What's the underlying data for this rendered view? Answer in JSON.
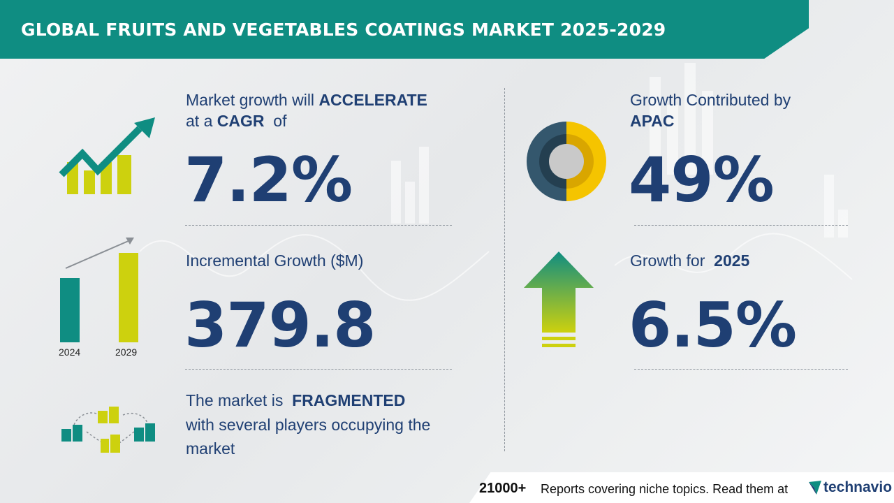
{
  "header": {
    "title": "GLOBAL FRUITS AND VEGETABLES COATINGS MARKET 2025-2029"
  },
  "cagr": {
    "line1_prefix": "Market growth will",
    "line1_emph": "ACCELERATE",
    "line2_prefix": "at a",
    "line2_emph": "CAGR",
    "line2_suffix": "of",
    "value": "7.2%"
  },
  "incremental": {
    "label": "Incremental Growth ($M)",
    "value": "379.8",
    "bars": [
      {
        "year": "2024"
      },
      {
        "year": "2029"
      }
    ]
  },
  "fragmented": {
    "line1_prefix": "The market is",
    "line1_emph": "FRAGMENTED",
    "line2": "with several players occupying the",
    "line3": "market"
  },
  "region": {
    "label_line1": "Growth Contributed by",
    "label_emph": "APAC",
    "value": "49%"
  },
  "yoy": {
    "label_prefix": "Growth for",
    "label_emph": "2025",
    "value": "6.5%"
  },
  "footer": {
    "count": "21000+",
    "text": "Reports covering niche topics. Read them at",
    "brand": "technavio"
  },
  "colors": {
    "teal": "#0f8d82",
    "navy": "#1f3f73",
    "lime": "#cdd10e",
    "yellow": "#f5c400",
    "slate": "#34576d"
  },
  "icons": [
    "growth-chart-icon",
    "bar-growth-icon",
    "fragmented-buildings-icon",
    "donut-share-icon",
    "up-arrow-icon",
    "technavio-logo-icon"
  ]
}
